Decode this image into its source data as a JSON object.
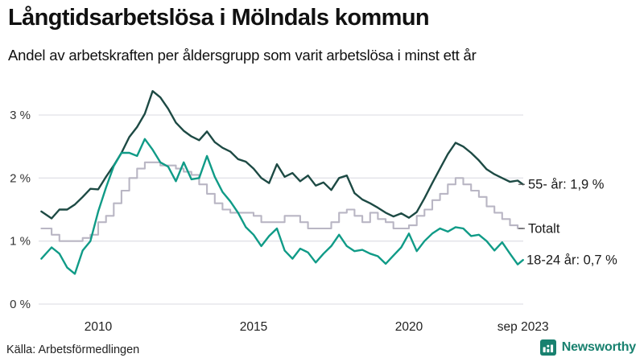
{
  "header": {
    "title": "Långtidsarbetslösa i Mölndals kommun",
    "subtitle": "Andel av arbetskraften per åldersgrupp som varit arbetslösa i minst ett år"
  },
  "footer": {
    "source": "Källa: Arbetsförmedlingen",
    "brand": "Newsworthy",
    "brand_icon": "bar-chart-bubble-icon"
  },
  "colors": {
    "line_55": "#1d4a44",
    "line_total": "#b9b6c4",
    "line_1824": "#109b87",
    "grid": "#e2e2e8",
    "label_dash": "#555555",
    "brand_teal": "#18816f"
  },
  "chart_data": {
    "type": "line",
    "title": "Långtidsarbetslösa i Mölndals kommun",
    "subtitle": "Andel av arbetskraften per åldersgrupp som varit arbetslösa i minst ett år",
    "xlabel": "",
    "ylabel": "",
    "grid": "horizontal",
    "legend_position": "right-end-labels",
    "xlim": [
      2008.17,
      2023.75
    ],
    "ylim": [
      0,
      3.6
    ],
    "yticks": [
      {
        "value": 3,
        "label": "3 %"
      },
      {
        "value": 2,
        "label": "2 %"
      },
      {
        "value": 1,
        "label": "1 %"
      },
      {
        "value": 0,
        "label": "0 %"
      }
    ],
    "xticks": [
      {
        "value": 2010,
        "label": "2010"
      },
      {
        "value": 2015,
        "label": "2015"
      },
      {
        "value": 2020,
        "label": "2020"
      },
      {
        "value": 2023.67,
        "label": "sep 2023"
      }
    ],
    "x": [
      2008.17,
      2008.5,
      2008.75,
      2009,
      2009.25,
      2009.5,
      2009.75,
      2010,
      2010.25,
      2010.5,
      2010.75,
      2011,
      2011.25,
      2011.5,
      2011.75,
      2012,
      2012.25,
      2012.5,
      2012.75,
      2013,
      2013.25,
      2013.5,
      2013.75,
      2014,
      2014.25,
      2014.5,
      2014.75,
      2015,
      2015.25,
      2015.5,
      2015.75,
      2016,
      2016.25,
      2016.5,
      2016.75,
      2017,
      2017.25,
      2017.5,
      2017.75,
      2018,
      2018.25,
      2018.5,
      2018.75,
      2019,
      2019.25,
      2019.5,
      2019.75,
      2020,
      2020.25,
      2020.5,
      2020.75,
      2021,
      2021.25,
      2021.5,
      2021.75,
      2022,
      2022.25,
      2022.5,
      2022.75,
      2023,
      2023.25,
      2023.5,
      2023.67
    ],
    "series": [
      {
        "id": "55",
        "name": "55- år",
        "end_label": "55- år: 1,9 %",
        "end_value_label": "1,9 %",
        "color_key": "line_55",
        "width": 2.4,
        "dash": true,
        "render": "line",
        "values": [
          1.47,
          1.36,
          1.5,
          1.5,
          1.58,
          1.7,
          1.83,
          1.82,
          2.02,
          2.2,
          2.4,
          2.65,
          2.81,
          3.02,
          3.38,
          3.28,
          3.1,
          2.88,
          2.75,
          2.66,
          2.6,
          2.74,
          2.57,
          2.48,
          2.42,
          2.3,
          2.26,
          2.15,
          2.0,
          1.92,
          2.22,
          2.02,
          2.08,
          1.95,
          2.04,
          1.88,
          1.93,
          1.81,
          2.0,
          2.04,
          1.76,
          1.66,
          1.6,
          1.53,
          1.45,
          1.39,
          1.44,
          1.37,
          1.46,
          1.68,
          1.92,
          2.15,
          2.38,
          2.56,
          2.5,
          2.4,
          2.28,
          2.14,
          2.06,
          2.0,
          1.94,
          1.96,
          1.9
        ]
      },
      {
        "id": "total",
        "name": "Totalt",
        "end_label": "Totalt",
        "end_value_label": "",
        "color_key": "line_total",
        "width": 2.1,
        "dash": true,
        "render": "step",
        "values": [
          1.2,
          1.1,
          1.0,
          1.0,
          1.0,
          1.05,
          1.1,
          1.3,
          1.4,
          1.6,
          1.8,
          2.0,
          2.15,
          2.25,
          2.25,
          2.2,
          2.2,
          2.15,
          2.1,
          2.05,
          1.9,
          1.75,
          1.6,
          1.5,
          1.45,
          1.45,
          1.45,
          1.4,
          1.3,
          1.3,
          1.3,
          1.4,
          1.4,
          1.3,
          1.2,
          1.2,
          1.2,
          1.3,
          1.45,
          1.5,
          1.4,
          1.3,
          1.45,
          1.35,
          1.3,
          1.2,
          1.2,
          1.25,
          1.4,
          1.5,
          1.65,
          1.75,
          1.9,
          2.0,
          1.9,
          1.8,
          1.7,
          1.55,
          1.45,
          1.35,
          1.25,
          1.2,
          1.2
        ]
      },
      {
        "id": "1824",
        "name": "18-24 år",
        "end_label": "18-24 år: 0,7 %",
        "end_value_label": "0,7 %",
        "color_key": "line_1824",
        "width": 2.4,
        "dash": false,
        "render": "line",
        "values": [
          0.72,
          0.9,
          0.8,
          0.58,
          0.48,
          0.85,
          1.0,
          1.47,
          1.85,
          2.19,
          2.4,
          2.4,
          2.35,
          2.62,
          2.45,
          2.25,
          2.18,
          1.95,
          2.25,
          1.98,
          2.0,
          2.35,
          2.02,
          1.78,
          1.63,
          1.45,
          1.22,
          1.1,
          0.92,
          1.08,
          1.2,
          0.85,
          0.72,
          0.88,
          0.82,
          0.66,
          0.8,
          0.92,
          1.1,
          0.92,
          0.84,
          0.86,
          0.8,
          0.76,
          0.64,
          0.77,
          0.9,
          1.12,
          0.84,
          1.0,
          1.12,
          1.2,
          1.15,
          1.22,
          1.2,
          1.08,
          1.1,
          1.0,
          0.85,
          0.98,
          0.8,
          0.63,
          0.7
        ]
      }
    ]
  }
}
